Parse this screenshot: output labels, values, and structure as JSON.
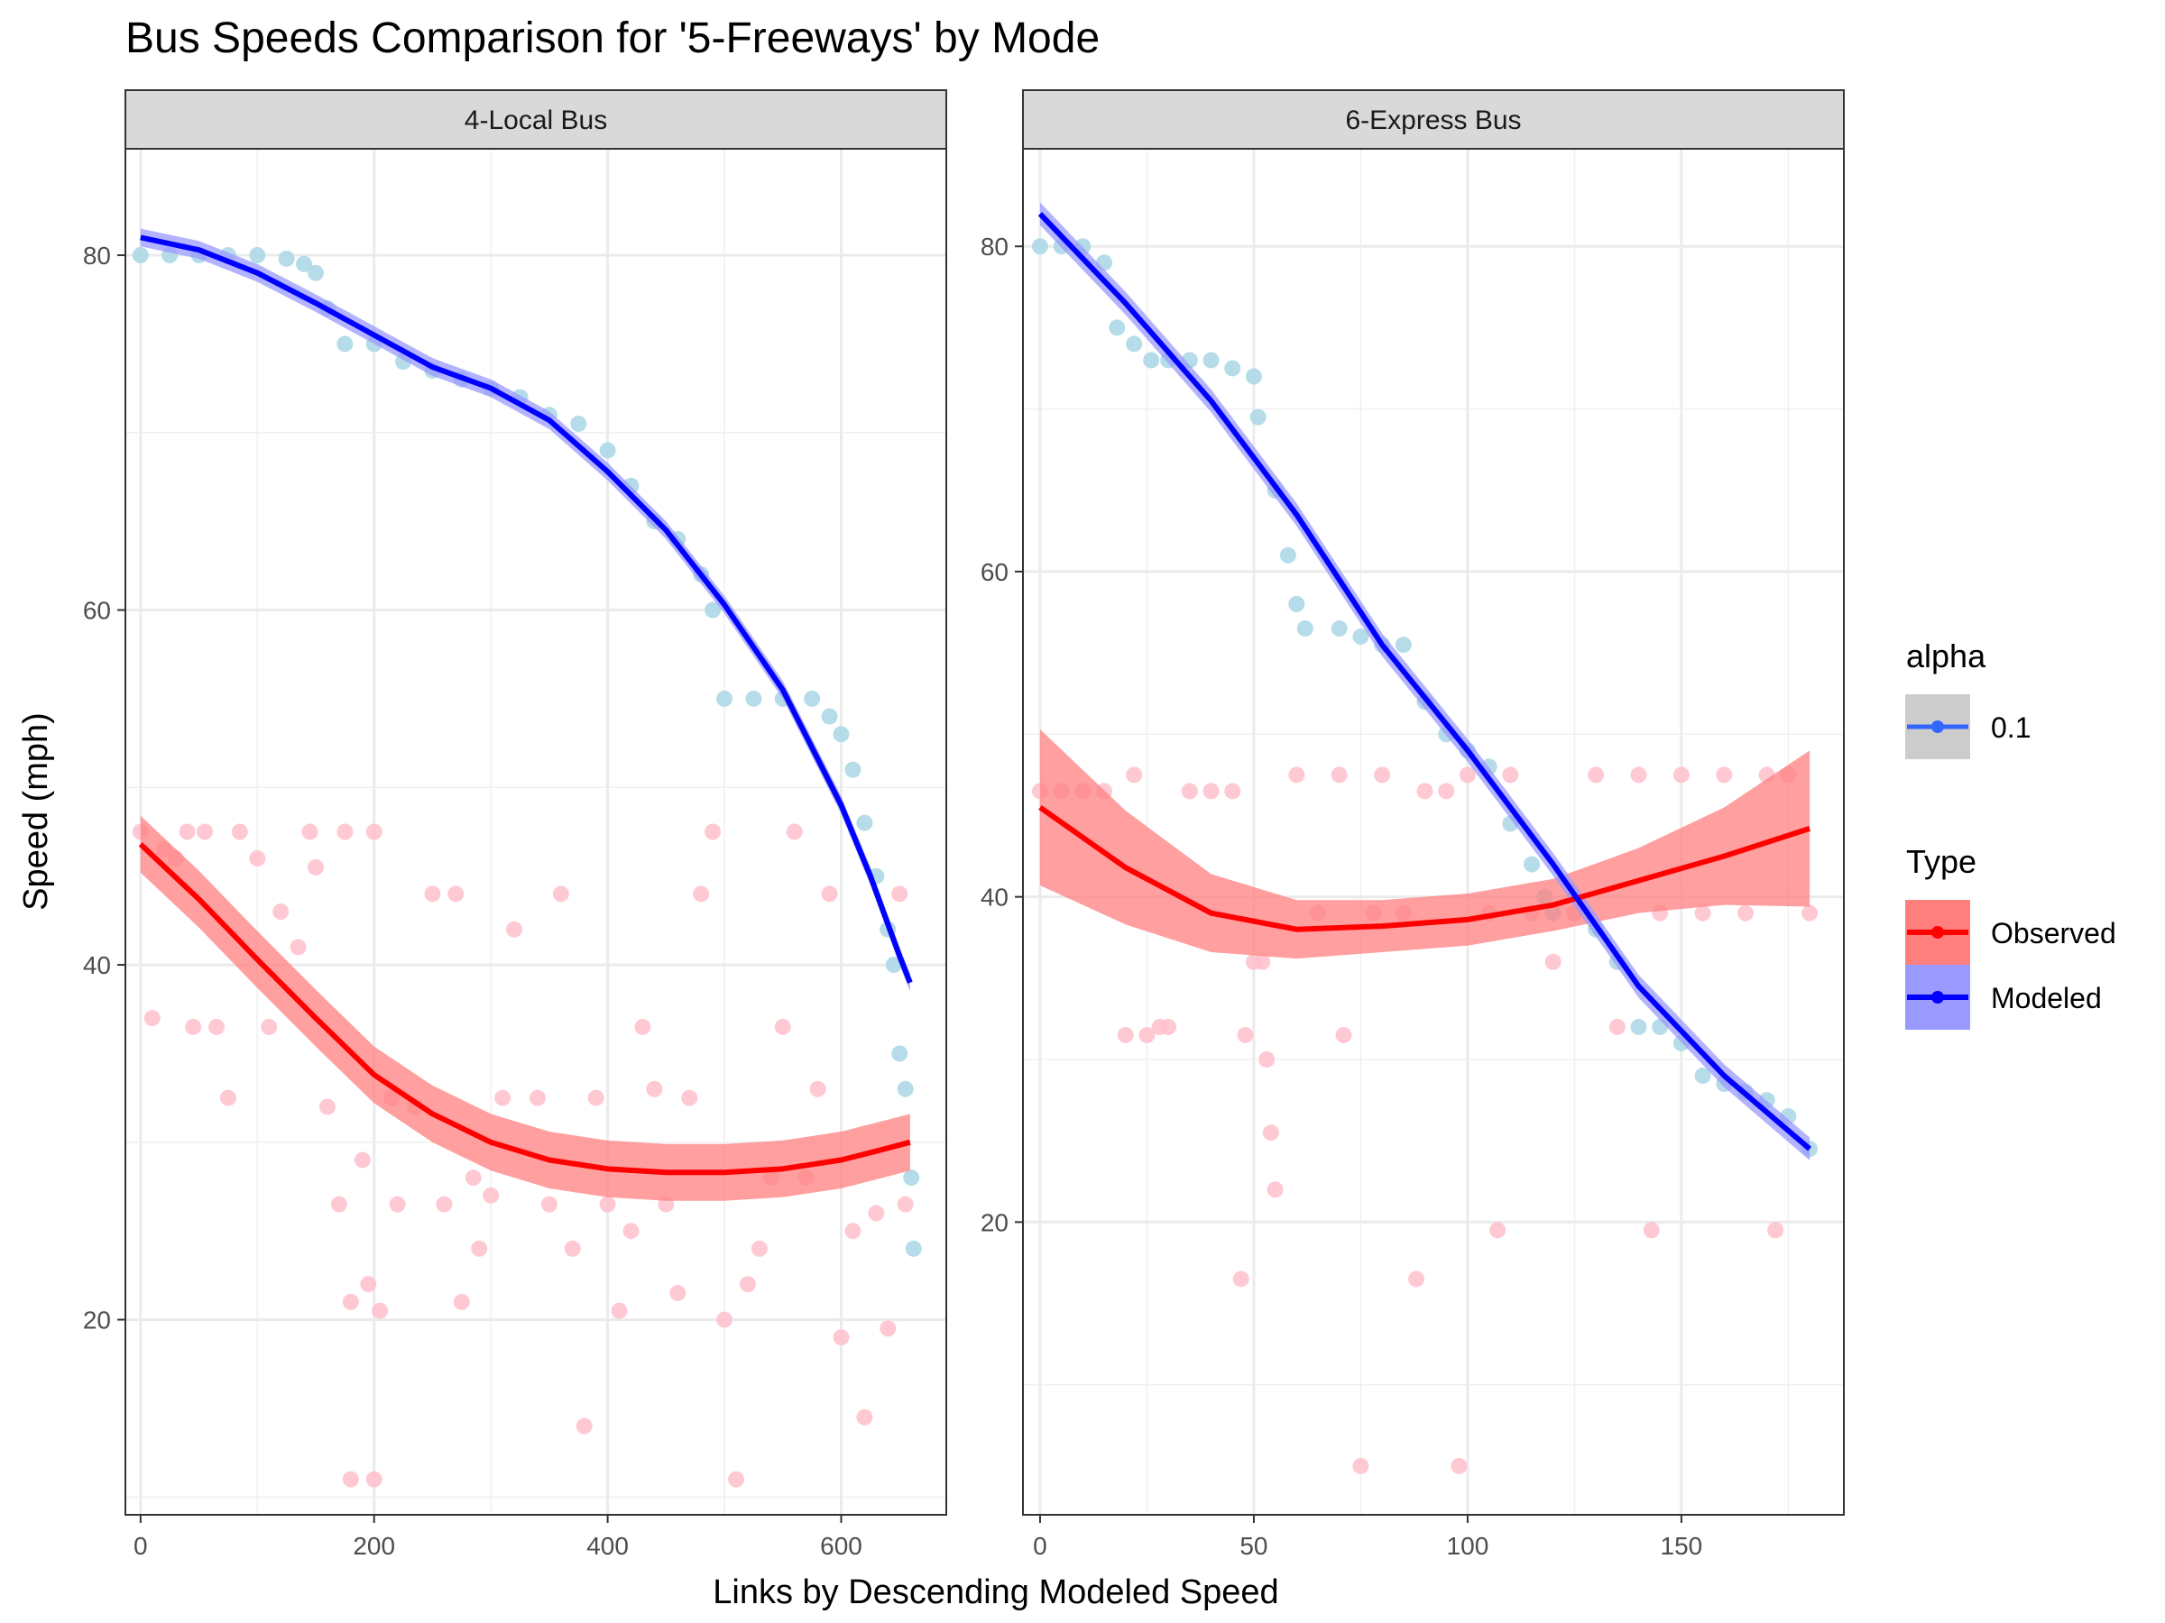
{
  "chart_data": {
    "type": "scatter",
    "title": "Bus Speeds Comparison for '5-Freeways' by Mode",
    "xlabel": "Links by Descending Modeled Speed",
    "ylabel": "Speed (mph)",
    "grid": true,
    "legend_placement": "right",
    "legend": {
      "alpha": {
        "title": "alpha",
        "entries": [
          "0.1"
        ]
      },
      "type": {
        "title": "Type",
        "entries": [
          "Observed",
          "Modeled"
        ]
      }
    },
    "colors": {
      "observed_points": "#ffc0cb",
      "observed_line": "#ff0000",
      "observed_band": "#ff7f7f",
      "modeled_points": "#add8e6",
      "modeled_line": "#0000ff",
      "modeled_band": "#9999ff",
      "alpha_key_fill": "#cccccc",
      "alpha_key_line": "#3366ff",
      "strip_fill": "#d9d9d9"
    },
    "panels": [
      {
        "strip": "4-Local Bus",
        "xlim": [
          -13,
          690
        ],
        "ylim": [
          9,
          86
        ],
        "xticks": [
          0,
          200,
          400,
          600
        ],
        "yticks": [
          20,
          40,
          60,
          80
        ],
        "modeled_points": [
          [
            0,
            80
          ],
          [
            25,
            80
          ],
          [
            50,
            80
          ],
          [
            75,
            80
          ],
          [
            100,
            80
          ],
          [
            125,
            79.8
          ],
          [
            140,
            79.5
          ],
          [
            150,
            79
          ],
          [
            160,
            77
          ],
          [
            175,
            75
          ],
          [
            200,
            75
          ],
          [
            225,
            74
          ],
          [
            250,
            73.5
          ],
          [
            275,
            73
          ],
          [
            300,
            72.5
          ],
          [
            325,
            72
          ],
          [
            350,
            71
          ],
          [
            375,
            70.5
          ],
          [
            400,
            69
          ],
          [
            420,
            67
          ],
          [
            440,
            65
          ],
          [
            460,
            64
          ],
          [
            480,
            62
          ],
          [
            490,
            60
          ],
          [
            500,
            55
          ],
          [
            525,
            55
          ],
          [
            550,
            55
          ],
          [
            575,
            55
          ],
          [
            590,
            54
          ],
          [
            600,
            53
          ],
          [
            610,
            51
          ],
          [
            620,
            48
          ],
          [
            630,
            45
          ],
          [
            640,
            42
          ],
          [
            645,
            40
          ],
          [
            650,
            35
          ],
          [
            655,
            33
          ],
          [
            660,
            28
          ],
          [
            662,
            24
          ]
        ],
        "modeled_fit": [
          [
            0,
            81
          ],
          [
            50,
            80.3
          ],
          [
            100,
            79
          ],
          [
            150,
            77.3
          ],
          [
            200,
            75.5
          ],
          [
            250,
            73.7
          ],
          [
            300,
            72.5
          ],
          [
            350,
            70.7
          ],
          [
            400,
            67.8
          ],
          [
            450,
            64.5
          ],
          [
            500,
            60.3
          ],
          [
            550,
            55.5
          ],
          [
            600,
            49
          ],
          [
            625,
            45
          ],
          [
            650,
            40.5
          ],
          [
            659,
            39
          ]
        ],
        "modeled_band_halfwidth": 0.5,
        "observed_points": [
          [
            0,
            47.5
          ],
          [
            10,
            37
          ],
          [
            20,
            46.5
          ],
          [
            30,
            46
          ],
          [
            40,
            47.5
          ],
          [
            45,
            36.5
          ],
          [
            55,
            47.5
          ],
          [
            65,
            36.5
          ],
          [
            75,
            32.5
          ],
          [
            85,
            47.5
          ],
          [
            100,
            46
          ],
          [
            110,
            36.5
          ],
          [
            120,
            43
          ],
          [
            135,
            41
          ],
          [
            145,
            47.5
          ],
          [
            150,
            45.5
          ],
          [
            160,
            32
          ],
          [
            170,
            26.5
          ],
          [
            175,
            47.5
          ],
          [
            180,
            21
          ],
          [
            190,
            29
          ],
          [
            195,
            22
          ],
          [
            200,
            47.5
          ],
          [
            205,
            20.5
          ],
          [
            215,
            32.5
          ],
          [
            220,
            26.5
          ],
          [
            235,
            32
          ],
          [
            250,
            44
          ],
          [
            260,
            26.5
          ],
          [
            270,
            44
          ],
          [
            275,
            21
          ],
          [
            285,
            28
          ],
          [
            290,
            24
          ],
          [
            300,
            27
          ],
          [
            310,
            32.5
          ],
          [
            320,
            42
          ],
          [
            340,
            32.5
          ],
          [
            350,
            26.5
          ],
          [
            360,
            44
          ],
          [
            370,
            24
          ],
          [
            380,
            14
          ],
          [
            390,
            32.5
          ],
          [
            400,
            26.5
          ],
          [
            410,
            20.5
          ],
          [
            420,
            25
          ],
          [
            430,
            36.5
          ],
          [
            440,
            33
          ],
          [
            450,
            26.5
          ],
          [
            460,
            21.5
          ],
          [
            470,
            32.5
          ],
          [
            480,
            44
          ],
          [
            490,
            47.5
          ],
          [
            500,
            20
          ],
          [
            510,
            11
          ],
          [
            520,
            22
          ],
          [
            530,
            24
          ],
          [
            540,
            28
          ],
          [
            550,
            36.5
          ],
          [
            560,
            47.5
          ],
          [
            570,
            28
          ],
          [
            580,
            33
          ],
          [
            590,
            44
          ],
          [
            600,
            19
          ],
          [
            610,
            25
          ],
          [
            620,
            14.5
          ],
          [
            630,
            26
          ],
          [
            640,
            19.5
          ],
          [
            650,
            44
          ],
          [
            655,
            26.5
          ],
          [
            180,
            11
          ],
          [
            200,
            11
          ]
        ],
        "observed_fit": [
          [
            0,
            46.8
          ],
          [
            50,
            43.7
          ],
          [
            100,
            40.3
          ],
          [
            150,
            37
          ],
          [
            200,
            33.8
          ],
          [
            250,
            31.6
          ],
          [
            300,
            30
          ],
          [
            350,
            29
          ],
          [
            400,
            28.5
          ],
          [
            450,
            28.3
          ],
          [
            500,
            28.3
          ],
          [
            550,
            28.5
          ],
          [
            600,
            29
          ],
          [
            630,
            29.5
          ],
          [
            659,
            30
          ]
        ],
        "observed_band_halfwidth": 1.6
      },
      {
        "strip": "6-Express Bus",
        "xlim": [
          -4,
          188
        ],
        "ylim": [
          2,
          86
        ],
        "xticks": [
          0,
          50,
          100,
          150
        ],
        "yticks": [
          20,
          40,
          60,
          80
        ],
        "modeled_points": [
          [
            0,
            80
          ],
          [
            5,
            80
          ],
          [
            10,
            80
          ],
          [
            15,
            79
          ],
          [
            18,
            75
          ],
          [
            22,
            74
          ],
          [
            26,
            73
          ],
          [
            30,
            73
          ],
          [
            35,
            73
          ],
          [
            40,
            73
          ],
          [
            45,
            72.5
          ],
          [
            50,
            72
          ],
          [
            51,
            69.5
          ],
          [
            55,
            65
          ],
          [
            58,
            61
          ],
          [
            60,
            58
          ],
          [
            62,
            56.5
          ],
          [
            70,
            56.5
          ],
          [
            75,
            56
          ],
          [
            80,
            55.5
          ],
          [
            85,
            55.5
          ],
          [
            90,
            52
          ],
          [
            95,
            50
          ],
          [
            100,
            49
          ],
          [
            105,
            48
          ],
          [
            110,
            44.5
          ],
          [
            115,
            42
          ],
          [
            118,
            40
          ],
          [
            120,
            39
          ],
          [
            125,
            39
          ],
          [
            130,
            38
          ],
          [
            135,
            36
          ],
          [
            140,
            32
          ],
          [
            145,
            32
          ],
          [
            150,
            31
          ],
          [
            155,
            29
          ],
          [
            160,
            28.5
          ],
          [
            165,
            28
          ],
          [
            170,
            27.5
          ],
          [
            175,
            26.5
          ],
          [
            180,
            24.5
          ]
        ],
        "modeled_fit": [
          [
            0,
            82
          ],
          [
            20,
            76.5
          ],
          [
            40,
            70.5
          ],
          [
            60,
            63.5
          ],
          [
            80,
            55.5
          ],
          [
            100,
            49
          ],
          [
            120,
            42
          ],
          [
            140,
            34.5
          ],
          [
            160,
            29
          ],
          [
            180,
            24.5
          ]
        ],
        "modeled_band_halfwidth": 0.7,
        "observed_points": [
          [
            0,
            46.5
          ],
          [
            5,
            46.5
          ],
          [
            10,
            46.5
          ],
          [
            15,
            46.5
          ],
          [
            20,
            31.5
          ],
          [
            22,
            47.5
          ],
          [
            25,
            31.5
          ],
          [
            28,
            32
          ],
          [
            30,
            32
          ],
          [
            35,
            46.5
          ],
          [
            40,
            46.5
          ],
          [
            45,
            46.5
          ],
          [
            47,
            16.5
          ],
          [
            48,
            31.5
          ],
          [
            50,
            36
          ],
          [
            52,
            36
          ],
          [
            53,
            30
          ],
          [
            54,
            25.5
          ],
          [
            55,
            22
          ],
          [
            60,
            47.5
          ],
          [
            65,
            39
          ],
          [
            70,
            47.5
          ],
          [
            71,
            31.5
          ],
          [
            75,
            5
          ],
          [
            78,
            39
          ],
          [
            80,
            47.5
          ],
          [
            85,
            39
          ],
          [
            88,
            16.5
          ],
          [
            90,
            46.5
          ],
          [
            95,
            46.5
          ],
          [
            98,
            5
          ],
          [
            100,
            47.5
          ],
          [
            105,
            39
          ],
          [
            107,
            19.5
          ],
          [
            110,
            47.5
          ],
          [
            115,
            39
          ],
          [
            120,
            36
          ],
          [
            125,
            39
          ],
          [
            130,
            47.5
          ],
          [
            135,
            32
          ],
          [
            140,
            47.5
          ],
          [
            143,
            19.5
          ],
          [
            145,
            39
          ],
          [
            150,
            47.5
          ],
          [
            155,
            39
          ],
          [
            160,
            47.5
          ],
          [
            165,
            39
          ],
          [
            170,
            47.5
          ],
          [
            172,
            19.5
          ],
          [
            175,
            47.5
          ],
          [
            180,
            39
          ]
        ],
        "observed_fit": [
          [
            0,
            45.5
          ],
          [
            20,
            41.8
          ],
          [
            40,
            39
          ],
          [
            60,
            38
          ],
          [
            80,
            38.2
          ],
          [
            100,
            38.6
          ],
          [
            120,
            39.5
          ],
          [
            140,
            41
          ],
          [
            160,
            42.5
          ],
          [
            180,
            44.2
          ]
        ],
        "observed_band_halfwidth": [
          4.8,
          3.5,
          2.4,
          1.8,
          1.6,
          1.6,
          1.6,
          2.0,
          3.0,
          4.8
        ]
      }
    ]
  }
}
